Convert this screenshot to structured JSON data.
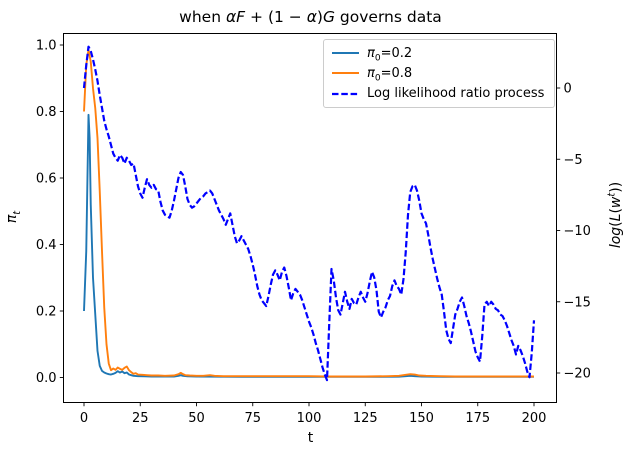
{
  "title_segments": [
    {
      "t": "when ",
      "i": false
    },
    {
      "t": "αF",
      "i": true
    },
    {
      "t": " + (1 − ",
      "i": false
    },
    {
      "t": "α",
      "i": true
    },
    {
      "t": ")",
      "i": false
    },
    {
      "t": "G",
      "i": true
    },
    {
      "t": " governs data",
      "i": false
    }
  ],
  "axes": {
    "xlabel": "t",
    "ylabel_left_segments": [
      {
        "t": "π",
        "i": true
      },
      {
        "t": "t",
        "i": true,
        "sub": true
      }
    ],
    "ylabel_right_segments": [
      {
        "t": "log",
        "i": true
      },
      {
        "t": "(",
        "i": false
      },
      {
        "t": "L",
        "i": true
      },
      {
        "t": "(",
        "i": false
      },
      {
        "t": "w",
        "i": true
      },
      {
        "t": "t",
        "i": true,
        "sup": true
      },
      {
        "t": "))",
        "i": false
      }
    ],
    "xticks": [
      {
        "label": "0",
        "t": 0
      },
      {
        "label": "25",
        "t": 25
      },
      {
        "label": "50",
        "t": 50
      },
      {
        "label": "75",
        "t": 75
      },
      {
        "label": "100",
        "t": 100
      },
      {
        "label": "125",
        "t": 125
      },
      {
        "label": "150",
        "t": 150
      },
      {
        "label": "175",
        "t": 175
      },
      {
        "label": "200",
        "t": 200
      }
    ],
    "yticks_left": [
      {
        "label": "0.0",
        "v": 0.0
      },
      {
        "label": "0.2",
        "v": 0.2
      },
      {
        "label": "0.4",
        "v": 0.4
      },
      {
        "label": "0.6",
        "v": 0.6
      },
      {
        "label": "0.8",
        "v": 0.8
      },
      {
        "label": "1.0",
        "v": 1.0
      }
    ],
    "yticks_right": [
      {
        "label": "0",
        "v": 0
      },
      {
        "label": "−5",
        "v": -5
      },
      {
        "label": "−10",
        "v": -10
      },
      {
        "label": "−15",
        "v": -15
      },
      {
        "label": "−20",
        "v": -20
      }
    ]
  },
  "legend": {
    "entries": [
      {
        "series_index": 0,
        "segments": [
          {
            "t": "π",
            "i": true
          },
          {
            "t": "0",
            "sub": true
          },
          {
            "t": "=0.2",
            "i": false
          }
        ]
      },
      {
        "series_index": 1,
        "segments": [
          {
            "t": "π",
            "i": true
          },
          {
            "t": "0",
            "sub": true
          },
          {
            "t": "=0.8",
            "i": false
          }
        ]
      },
      {
        "series_index": 2,
        "segments": [
          {
            "t": "Log likelihood ratio process",
            "i": false
          }
        ]
      }
    ]
  },
  "chart_data": {
    "type": "line",
    "title": "when αF + (1 − α)G governs data",
    "xlabel": "t",
    "ylabel_left": "π_t",
    "ylabel_right": "log(L(w^t))",
    "xlim": [
      -9,
      210
    ],
    "ylim_left": [
      -0.05,
      1.03
    ],
    "ylim_right": [
      -22.1,
      3.8
    ],
    "grid": false,
    "legend_position": "upper right",
    "series": [
      {
        "name": "π_0=0.2",
        "axis": "left",
        "color": "#1f77b4",
        "style": "solid",
        "points": [
          [
            0,
            0.2
          ],
          [
            1,
            0.38
          ],
          [
            2,
            0.79
          ],
          [
            2.5,
            0.72
          ],
          [
            3,
            0.52
          ],
          [
            4,
            0.3
          ],
          [
            5,
            0.19
          ],
          [
            6,
            0.08
          ],
          [
            7,
            0.035
          ],
          [
            8,
            0.02
          ],
          [
            9,
            0.015
          ],
          [
            10,
            0.012
          ],
          [
            11,
            0.01
          ],
          [
            12,
            0.009
          ],
          [
            13,
            0.011
          ],
          [
            14,
            0.014
          ],
          [
            15,
            0.019
          ],
          [
            16,
            0.015
          ],
          [
            17,
            0.018
          ],
          [
            18,
            0.013
          ],
          [
            19,
            0.015
          ],
          [
            20,
            0.009
          ],
          [
            21,
            0.007
          ],
          [
            22,
            0.005
          ],
          [
            24,
            0.004
          ],
          [
            27,
            0.0035
          ],
          [
            30,
            0.003
          ],
          [
            35,
            0.003
          ],
          [
            40,
            0.003
          ],
          [
            42,
            0.005
          ],
          [
            43,
            0.007
          ],
          [
            44,
            0.005
          ],
          [
            46,
            0.0035
          ],
          [
            50,
            0.003
          ],
          [
            60,
            0.0025
          ],
          [
            70,
            0.002
          ],
          [
            85,
            0.002
          ],
          [
            100,
            0.002
          ],
          [
            115,
            0.002
          ],
          [
            130,
            0.002
          ],
          [
            140,
            0.0025
          ],
          [
            143,
            0.004
          ],
          [
            145,
            0.005
          ],
          [
            147,
            0.004
          ],
          [
            150,
            0.003
          ],
          [
            160,
            0.002
          ],
          [
            175,
            0.002
          ],
          [
            190,
            0.002
          ],
          [
            200,
            0.002
          ]
        ]
      },
      {
        "name": "π_0=0.8",
        "axis": "left",
        "color": "#ff7f0e",
        "style": "solid",
        "points": [
          [
            0,
            0.8
          ],
          [
            1,
            0.94
          ],
          [
            2,
            0.985
          ],
          [
            3,
            0.95
          ],
          [
            4,
            0.87
          ],
          [
            5,
            0.81
          ],
          [
            6,
            0.72
          ],
          [
            7,
            0.56
          ],
          [
            8,
            0.38
          ],
          [
            9,
            0.21
          ],
          [
            10,
            0.1
          ],
          [
            11,
            0.042
          ],
          [
            12,
            0.022
          ],
          [
            13,
            0.027
          ],
          [
            14,
            0.023
          ],
          [
            15,
            0.03
          ],
          [
            16,
            0.026
          ],
          [
            17,
            0.023
          ],
          [
            18,
            0.029
          ],
          [
            19,
            0.033
          ],
          [
            20,
            0.022
          ],
          [
            21,
            0.016
          ],
          [
            22,
            0.011
          ],
          [
            23,
            0.013
          ],
          [
            24,
            0.009
          ],
          [
            26,
            0.008
          ],
          [
            28,
            0.007
          ],
          [
            30,
            0.006
          ],
          [
            33,
            0.006
          ],
          [
            36,
            0.005
          ],
          [
            40,
            0.006
          ],
          [
            42,
            0.01
          ],
          [
            43,
            0.014
          ],
          [
            44,
            0.01
          ],
          [
            45,
            0.007
          ],
          [
            47,
            0.006
          ],
          [
            50,
            0.005
          ],
          [
            53,
            0.005
          ],
          [
            56,
            0.007
          ],
          [
            58,
            0.005
          ],
          [
            62,
            0.004
          ],
          [
            70,
            0.004
          ],
          [
            80,
            0.004
          ],
          [
            90,
            0.004
          ],
          [
            100,
            0.004
          ],
          [
            108,
            0.003
          ],
          [
            115,
            0.003
          ],
          [
            125,
            0.003
          ],
          [
            135,
            0.004
          ],
          [
            140,
            0.005
          ],
          [
            143,
            0.008
          ],
          [
            145,
            0.01
          ],
          [
            147,
            0.009
          ],
          [
            149,
            0.006
          ],
          [
            152,
            0.005
          ],
          [
            158,
            0.004
          ],
          [
            165,
            0.003
          ],
          [
            175,
            0.003
          ],
          [
            185,
            0.003
          ],
          [
            195,
            0.003
          ],
          [
            200,
            0.003
          ]
        ]
      },
      {
        "name": "Log likelihood ratio process",
        "axis": "right",
        "color": "#0000ff",
        "style": "dashed",
        "x_start": 0,
        "x_step": 1,
        "values": [
          0,
          1.6,
          2.9,
          2.6,
          2.0,
          1.3,
          0.5,
          -0.5,
          -1.4,
          -2.3,
          -2.9,
          -3.4,
          -4.0,
          -4.6,
          -4.9,
          -5.1,
          -4.7,
          -4.9,
          -5.3,
          -4.9,
          -5.1,
          -5.4,
          -5.3,
          -6.1,
          -6.9,
          -7.4,
          -7.7,
          -7.0,
          -6.4,
          -6.8,
          -7.0,
          -6.8,
          -7.1,
          -7.2,
          -8.0,
          -8.6,
          -8.9,
          -9.0,
          -9.1,
          -8.6,
          -7.9,
          -7.1,
          -6.3,
          -5.9,
          -6.1,
          -6.9,
          -7.8,
          -8.2,
          -8.4,
          -8.3,
          -8.1,
          -7.9,
          -7.7,
          -7.6,
          -7.4,
          -7.3,
          -7.2,
          -7.4,
          -7.8,
          -8.2,
          -8.6,
          -8.9,
          -9.2,
          -9.6,
          -9.2,
          -8.8,
          -9.6,
          -10.4,
          -10.9,
          -10.7,
          -10.4,
          -10.7,
          -11.0,
          -11.3,
          -11.8,
          -12.4,
          -13.1,
          -13.9,
          -14.5,
          -14.9,
          -15.1,
          -15.3,
          -14.6,
          -13.8,
          -13.1,
          -12.8,
          -13.1,
          -13.5,
          -12.9,
          -12.6,
          -13.2,
          -14.0,
          -14.9,
          -14.4,
          -14.1,
          -14.3,
          -14.5,
          -14.9,
          -15.4,
          -15.9,
          -16.4,
          -16.8,
          -17.3,
          -17.9,
          -18.4,
          -19.0,
          -19.6,
          -20.1,
          -20.5,
          -16.5,
          -12.7,
          -13.5,
          -14.7,
          -15.6,
          -15.9,
          -15.1,
          -14.3,
          -15.0,
          -15.5,
          -14.8,
          -15.1,
          -15.2,
          -14.7,
          -14.3,
          -14.7,
          -15.0,
          -14.4,
          -13.6,
          -12.9,
          -13.3,
          -14.2,
          -15.7,
          -16.1,
          -15.7,
          -15.4,
          -14.9,
          -14.6,
          -13.9,
          -13.5,
          -13.9,
          -14.1,
          -14.5,
          -13.4,
          -11.5,
          -8.9,
          -7.3,
          -6.9,
          -6.8,
          -7.2,
          -7.9,
          -8.8,
          -9.2,
          -9.5,
          -10.3,
          -11.2,
          -12.0,
          -12.7,
          -13.4,
          -14.0,
          -14.5,
          -15.7,
          -17.0,
          -17.6,
          -17.9,
          -16.9,
          -15.9,
          -15.5,
          -15.0,
          -14.7,
          -15.3,
          -16.0,
          -16.5,
          -17.1,
          -17.8,
          -18.5,
          -18.9,
          -19.2,
          -17.4,
          -15.2,
          -15.0,
          -15.3,
          -15.0,
          -15.2,
          -15.5,
          -15.6,
          -15.9,
          -16.0,
          -16.3,
          -16.7,
          -17.2,
          -17.7,
          -18.1,
          -18.7,
          -18.1,
          -18.4,
          -18.8,
          -19.3,
          -19.9,
          -20.3,
          -18.6,
          -16.3
        ]
      }
    ]
  }
}
